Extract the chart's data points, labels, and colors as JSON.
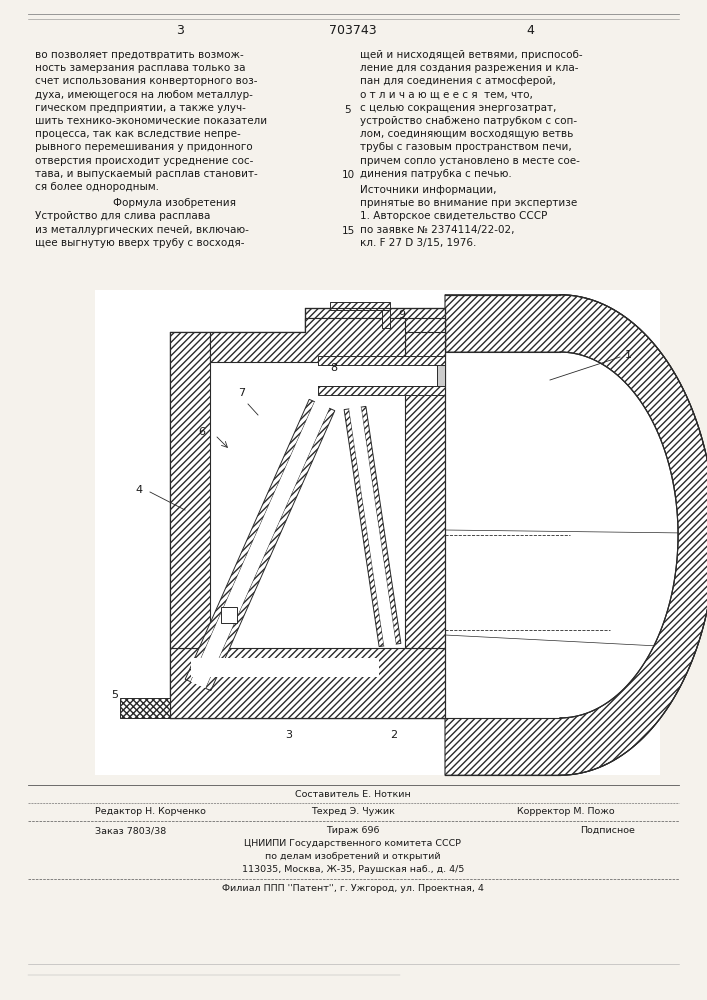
{
  "page_number_left": "3",
  "page_number_center": "703743",
  "page_number_right": "4",
  "left_col_text": [
    "во позволяет предотвратить возмож-",
    "ность замерзания расплава только за",
    "счет использования конверторного воз-",
    "духа, имеющегося на любом металлур-",
    "гическом предприятии, а также улуч-",
    "шить технико-экономические показатели",
    "процесса, так как вследствие непре-",
    "рывного перемешивания у придонного",
    "отверстия происходит усреднение сос-",
    "тава, и выпускаемый расплав становит-",
    "ся более однородным."
  ],
  "formula_title": "Формула изобретения",
  "formula_text": [
    "Устройство для слива расплава",
    "из металлургических печей, включаю-",
    "щее выгнутую вверх трубу с восходя-"
  ],
  "right_col_text": [
    "щей и нисходящей ветвями, приспособ-",
    "ление для создания разрежения и кла-",
    "пан для соединения с атмосферой,",
    "о т л и ч а ю щ е е с я  тем, что,",
    "с целью сокращения энергозатрат,",
    "устройство снабжено патрубком с соп-",
    "лом, соединяющим восходящую ветвь",
    "трубы с газовым пространством печи,",
    "причем сопло установлено в месте сое-",
    "динения патрубка с печью."
  ],
  "sources_title": "Источники информации,",
  "sources_text": [
    "принятые во внимание при экспертизе",
    "1. Авторское свидетельство СССР",
    "по заявке № 2374114/22-02,",
    "кл. F 27 D 3/15, 1976."
  ],
  "составитель": "Составитель Е. Ноткин",
  "редактор": "Редактор Н. Корченко",
  "техред": "Техред Э. Чужик",
  "корректор": "Корректор М. Пожо",
  "заказ": "Заказ 7803/38",
  "тираж": "Тираж 696",
  "подписное": "Подписное",
  "цниипи_line1": "ЦНИИПИ Государственного комитета СССР",
  "цниипи_line2": "по делам изобретений и открытий",
  "цниипи_line3": "113035, Москва, Ж-35, Раушская наб., д. 4/5",
  "филиал": "Филиал ППП ''Патент'', г. Ужгород, ул. Проектная, 4",
  "bg_color": "#f5f2ec",
  "text_color": "#1a1a1a"
}
